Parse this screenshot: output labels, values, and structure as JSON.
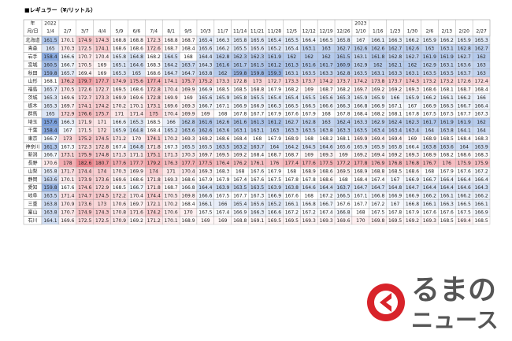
{
  "title": "■レギュラー（¥/リットル）",
  "table": {
    "corner": [
      "年",
      "月/日"
    ],
    "columns": [
      {
        "year": "2022",
        "date": "1/4"
      },
      "2/7",
      "3/7",
      "4/4",
      "5/9",
      "6/6",
      "7/4",
      "8/1",
      "9/5",
      "10/3",
      "11/7",
      "11/14",
      "11/21",
      "11/28",
      "12/5",
      "12/12",
      "12/19",
      "12/26",
      {
        "year": "2023",
        "date": "1/10"
      },
      "1/16",
      "1/23",
      "1/30",
      "2/6",
      "2/13",
      "2/20",
      "2/27"
    ],
    "color_scale": [
      "#6f97d8",
      "#ffffff",
      "#ec7b82"
    ],
    "rows": [
      {
        "name": "北海道",
        "values": [
          161.5,
          170.1,
          174.9,
          174.3,
          168.8,
          168.8,
          172.3,
          168.8,
          168.7,
          165.4,
          166.3,
          165.8,
          165.6,
          165.4,
          165.5,
          166.4,
          166.5,
          165.8,
          167.0,
          166.1,
          166.3,
          166.2,
          165.9,
          166.2,
          165.9,
          165.3
        ]
      },
      {
        "name": "青森",
        "values": [
          165.0,
          170.3,
          172.5,
          174.1,
          168.6,
          168.6,
          172.6,
          168.7,
          168.4,
          165.6,
          166.2,
          165.5,
          165.6,
          165.2,
          165.4,
          163.1,
          163.0,
          162.7,
          162.6,
          162.6,
          162.7,
          162.6,
          163.0,
          163.1,
          162.8,
          162.7
        ]
      },
      {
        "name": "岩手",
        "values": [
          158.4,
          166.6,
          170.7,
          170.4,
          165.8,
          164.8,
          168.2,
          164.5,
          168.0,
          164.4,
          162.8,
          162.3,
          162.3,
          161.9,
          162.0,
          162.0,
          162.0,
          161.5,
          163.1,
          161.8,
          162.8,
          162.7,
          161.9,
          161.9,
          162.7,
          162.0
        ]
      },
      {
        "name": "宮城",
        "values": [
          160.5,
          166.7,
          170.5,
          169.0,
          165.1,
          164.6,
          168.3,
          164.2,
          163.7,
          164.3,
          161.6,
          161.7,
          161.5,
          161.2,
          161.3,
          161.6,
          161.7,
          160.9,
          162.9,
          162.0,
          162.1,
          162.0,
          162.9,
          163.1,
          163.6,
          163.0
        ]
      },
      {
        "name": "秋田",
        "values": [
          159.8,
          165.7,
          169.4,
          169.0,
          165.3,
          165.0,
          168.6,
          164.7,
          164.7,
          163.8,
          162.0,
          159.8,
          159.8,
          159.3,
          163.1,
          163.5,
          163.3,
          162.8,
          163.5,
          163.1,
          163.3,
          163.1,
          163.5,
          163.5,
          163.7,
          163.0
        ]
      },
      {
        "name": "山形",
        "values": [
          168.1,
          176.2,
          179.7,
          177.7,
          174.9,
          175.6,
          177.4,
          174.1,
          175.7,
          175.2,
          173.3,
          172.8,
          173.0,
          172.7,
          173.3,
          173.7,
          174.2,
          173.7,
          174.2,
          173.8,
          173.7,
          174.3,
          173.2,
          173.2,
          172.6,
          172.4
        ]
      },
      {
        "name": "福島",
        "values": [
          165.7,
          170.5,
          172.6,
          172.7,
          169.5,
          168.6,
          172.8,
          170.4,
          169.9,
          166.9,
          168.5,
          168.5,
          168.8,
          167.9,
          168.2,
          169.0,
          168.7,
          168.2,
          169.7,
          169.2,
          169.2,
          169.3,
          168.6,
          168.1,
          168.7,
          168.4
        ]
      },
      {
        "name": "茨城",
        "values": [
          165.3,
          169.6,
          172.7,
          173.3,
          169.9,
          169.6,
          172.8,
          169.9,
          169.0,
          165.6,
          165.9,
          165.8,
          165.5,
          165.4,
          165.4,
          165.5,
          165.6,
          165.3,
          165.9,
          165.9,
          166.0,
          165.9,
          166.2,
          166.1,
          166.2,
          166.0
        ]
      },
      {
        "name": "栃木",
        "values": [
          165.3,
          169.7,
          174.1,
          174.2,
          170.2,
          170.1,
          173.1,
          169.6,
          169.3,
          166.7,
          167.1,
          166.9,
          166.9,
          166.3,
          166.5,
          166.5,
          166.6,
          166.3,
          166.8,
          166.9,
          167.1,
          167.0,
          166.9,
          166.5,
          166.7,
          166.4
        ]
      },
      {
        "name": "群馬",
        "values": [
          165.0,
          172.9,
          176.6,
          175.7,
          171.0,
          171.4,
          175.0,
          170.4,
          169.9,
          169.0,
          168.0,
          167.8,
          167.7,
          167.9,
          167.6,
          167.9,
          168.0,
          167.8,
          168.4,
          168.2,
          168.1,
          167.8,
          167.5,
          167.5,
          167.7,
          167.3
        ]
      },
      {
        "name": "埼玉",
        "values": [
          157.6,
          166.3,
          171.9,
          171.0,
          166.6,
          165.3,
          168.5,
          166.0,
          162.8,
          161.6,
          162.6,
          161.6,
          161.3,
          161.2,
          162.7,
          162.8,
          163.0,
          162.4,
          163.3,
          162.9,
          162.4,
          162.3,
          161.7,
          161.9,
          161.9,
          162.0
        ]
      },
      {
        "name": "千葉",
        "values": [
          158.4,
          167.0,
          171.5,
          172.0,
          165.9,
          164.8,
          168.4,
          165.2,
          163.6,
          162.6,
          163.6,
          163.1,
          163.1,
          163.0,
          163.3,
          163.5,
          163.8,
          163.3,
          163.5,
          163.4,
          163.4,
          163.4,
          164.0,
          163.8,
          164.1,
          164.0
        ]
      },
      {
        "name": "東京",
        "values": [
          166.7,
          173.0,
          175.2,
          174.5,
          171.2,
          170.0,
          174.1,
          170.2,
          169.3,
          169.2,
          168.6,
          168.4,
          168.0,
          167.9,
          168.9,
          168.0,
          168.2,
          168.1,
          169.9,
          169.4,
          169.4,
          169.0,
          168.9,
          168.5,
          168.4,
          168.3
        ]
      },
      {
        "name": "神奈川",
        "values": [
          161.3,
          167.3,
          172.3,
          172.8,
          167.4,
          164.8,
          171.8,
          167.3,
          165.5,
          165.5,
          163.5,
          163.2,
          163.7,
          164.0,
          164.2,
          164.5,
          164.6,
          165.6,
          165.9,
          165.9,
          165.8,
          166.4,
          163.8,
          163.6,
          164.0,
          163.9
        ]
      },
      {
        "name": "新潟",
        "values": [
          166.7,
          173.1,
          175.9,
          174.8,
          171.3,
          171.1,
          175.1,
          171.3,
          170.3,
          169.7,
          169.5,
          169.2,
          168.4,
          168.7,
          168.7,
          169.0,
          169.3,
          169.0,
          169.2,
          169.4,
          169.2,
          169.3,
          168.9,
          168.2,
          168.6,
          168.3
        ]
      },
      {
        "name": "長野",
        "values": [
          170.6,
          178.0,
          182.6,
          180.7,
          177.6,
          177.7,
          179.2,
          176.3,
          177.7,
          177.5,
          176.4,
          176.2,
          176.1,
          176.0,
          177.4,
          177.6,
          177.5,
          177.2,
          177.8,
          176.9,
          176.8,
          176.8,
          176.7,
          176.0,
          175.9,
          175.9
        ]
      },
      {
        "name": "山梨",
        "values": [
          165.8,
          171.7,
          174.4,
          174.0,
          170.3,
          169.9,
          174.0,
          171.0,
          170.4,
          169.3,
          168.3,
          168.0,
          167.6,
          167.9,
          168.0,
          168.9,
          168.6,
          169.5,
          168.9,
          168.8,
          168.5,
          168.6,
          168.0,
          167.9,
          167.6,
          167.2
        ]
      },
      {
        "name": "静岡",
        "values": [
          163.6,
          170.1,
          173.9,
          173.6,
          169.6,
          168.6,
          171.8,
          169.3,
          168.6,
          167.9,
          167.9,
          167.4,
          167.6,
          167.5,
          167.8,
          167.8,
          168.6,
          168.0,
          168.4,
          167.4,
          167.0,
          166.9,
          166.7,
          166.4,
          166.4,
          166.4
        ]
      },
      {
        "name": "愛知",
        "values": [
          159.8,
          167.6,
          174.6,
          172.9,
          168.5,
          166.7,
          171.8,
          168.7,
          166.8,
          164.4,
          163.9,
          163.5,
          163.5,
          163.9,
          163.8,
          164.6,
          164.4,
          163.7,
          164.7,
          164.7,
          164.8,
          164.7,
          164.4,
          164.4,
          164.6,
          164.3
        ]
      },
      {
        "name": "岐阜",
        "values": [
          163.5,
          171.4,
          174.7,
          174.5,
          172.2,
          170.4,
          174.4,
          170.5,
          169.8,
          166.6,
          167.5,
          167.7,
          167.3,
          166.9,
          167.6,
          168.0,
          167.2,
          166.5,
          167.1,
          166.8,
          166.9,
          166.9,
          166.2,
          166.1,
          166.2,
          166.2
        ]
      },
      {
        "name": "三重",
        "values": [
          163.8,
          170.9,
          173.6,
          173.0,
          170.6,
          169.7,
          172.1,
          170.2,
          168.4,
          166.1,
          166.0,
          165.4,
          165.6,
          165.2,
          166.1,
          166.8,
          166.7,
          167.6,
          167.7,
          167.2,
          167.0,
          166.8,
          166.1,
          166.3,
          166.5,
          166.1
        ]
      },
      {
        "name": "富山",
        "values": [
          163.8,
          170.7,
          174.9,
          174.3,
          170.8,
          171.6,
          174.2,
          170.6,
          170.0,
          167.5,
          167.4,
          166.9,
          166.3,
          166.6,
          167.2,
          167.2,
          167.4,
          166.8,
          168.0,
          167.5,
          167.8,
          167.9,
          167.6,
          167.6,
          167.5,
          166.9
        ]
      },
      {
        "name": "石川",
        "values": [
          164.1,
          169.6,
          172.5,
          172.5,
          170.9,
          169.2,
          171.2,
          170.1,
          168.9,
          169.0,
          169.0,
          168.8,
          169.1,
          169.5,
          169.5,
          169.3,
          169.3,
          169.6,
          170.0,
          169.8,
          169.5,
          169.2,
          169.3,
          168.5,
          169.4,
          168.5
        ]
      }
    ]
  },
  "logo": {
    "line1": "るまの",
    "line2": "ニュース"
  }
}
